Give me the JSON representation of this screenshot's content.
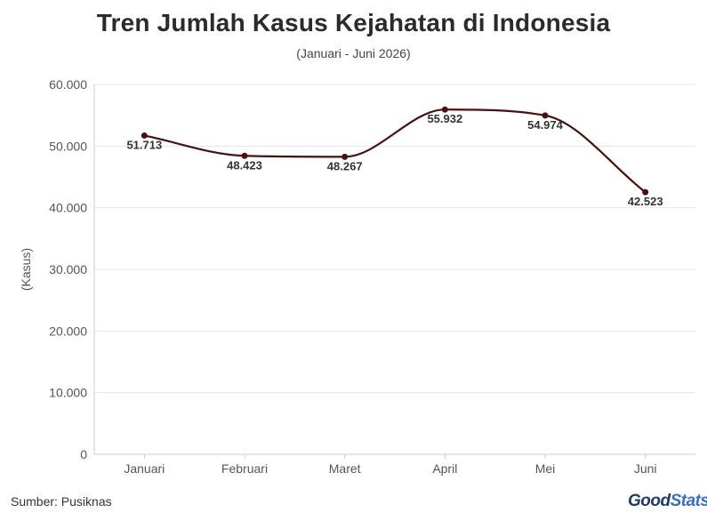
{
  "title": "Tren Jumlah Kasus Kejahatan di Indonesia",
  "subtitle": "(Januari - Juni 2026)",
  "source": "Sumber: Pusiknas",
  "brand": {
    "part1": "Good",
    "part2": "Stats"
  },
  "colors": {
    "line": "#4a0f0f",
    "grid": "#e6e6e6",
    "axis": "#cccccc",
    "text": "#555555"
  },
  "chart_data": {
    "type": "line",
    "title": "Tren Jumlah Kasus Kejahatan di Indonesia",
    "subtitle": "(Januari - Juni 2026)",
    "xlabel": "",
    "ylabel": "(Kasus)",
    "categories": [
      "Januari",
      "Februari",
      "Maret",
      "April",
      "Mei",
      "Juni"
    ],
    "values": [
      51713,
      48423,
      48267,
      55932,
      54974,
      42523
    ],
    "value_labels": [
      "51.713",
      "48.423",
      "48.267",
      "55.932",
      "54.974",
      "42.523"
    ],
    "ylim": [
      0,
      60000
    ],
    "yticks": [
      0,
      10000,
      20000,
      30000,
      40000,
      50000,
      60000
    ],
    "ytick_labels": [
      "0",
      "10.000",
      "20.000",
      "30.000",
      "40.000",
      "50.000",
      "60.000"
    ],
    "smooth": true,
    "grid": true,
    "legend": "none"
  }
}
